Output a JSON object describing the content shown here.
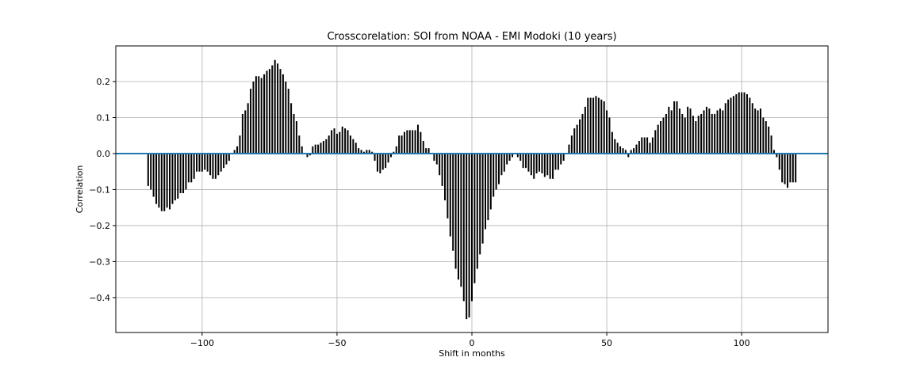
{
  "chart_data": {
    "type": "xcorr",
    "title": "Crosscorelation: SOI from NOAA - EMI Modoki (10 years)",
    "xlabel": "Shift in months",
    "ylabel": "Correlation",
    "x": [
      -120,
      -119,
      -118,
      -117,
      -116,
      -115,
      -114,
      -113,
      -112,
      -111,
      -110,
      -109,
      -108,
      -107,
      -106,
      -105,
      -104,
      -103,
      -102,
      -101,
      -100,
      -99,
      -98,
      -97,
      -96,
      -95,
      -94,
      -93,
      -92,
      -91,
      -90,
      -89,
      -88,
      -87,
      -86,
      -85,
      -84,
      -83,
      -82,
      -81,
      -80,
      -79,
      -78,
      -77,
      -76,
      -75,
      -74,
      -73,
      -72,
      -71,
      -70,
      -69,
      -68,
      -67,
      -66,
      -65,
      -64,
      -63,
      -62,
      -61,
      -60,
      -59,
      -58,
      -57,
      -56,
      -55,
      -54,
      -53,
      -52,
      -51,
      -50,
      -49,
      -48,
      -47,
      -46,
      -45,
      -44,
      -43,
      -42,
      -41,
      -40,
      -39,
      -38,
      -37,
      -36,
      -35,
      -34,
      -33,
      -32,
      -31,
      -30,
      -29,
      -28,
      -27,
      -26,
      -25,
      -24,
      -23,
      -22,
      -21,
      -20,
      -19,
      -18,
      -17,
      -16,
      -15,
      -14,
      -13,
      -12,
      -11,
      -10,
      -9,
      -8,
      -7,
      -6,
      -5,
      -4,
      -3,
      -2,
      -1,
      0,
      1,
      2,
      3,
      4,
      5,
      6,
      7,
      8,
      9,
      10,
      11,
      12,
      13,
      14,
      15,
      16,
      17,
      18,
      19,
      20,
      21,
      22,
      23,
      24,
      25,
      26,
      27,
      28,
      29,
      30,
      31,
      32,
      33,
      34,
      35,
      36,
      37,
      38,
      39,
      40,
      41,
      42,
      43,
      44,
      45,
      46,
      47,
      48,
      49,
      50,
      51,
      52,
      53,
      54,
      55,
      56,
      57,
      58,
      59,
      60,
      61,
      62,
      63,
      64,
      65,
      66,
      67,
      68,
      69,
      70,
      71,
      72,
      73,
      74,
      75,
      76,
      77,
      78,
      79,
      80,
      81,
      82,
      83,
      84,
      85,
      86,
      87,
      88,
      89,
      90,
      91,
      92,
      93,
      94,
      95,
      96,
      97,
      98,
      99,
      100,
      101,
      102,
      103,
      104,
      105,
      106,
      107,
      108,
      109,
      110,
      111,
      112,
      113,
      114,
      115,
      116,
      117,
      118,
      119,
      120
    ],
    "values": [
      -0.09,
      -0.1,
      -0.12,
      -0.14,
      -0.15,
      -0.16,
      -0.16,
      -0.15,
      -0.155,
      -0.14,
      -0.13,
      -0.125,
      -0.11,
      -0.11,
      -0.1,
      -0.08,
      -0.08,
      -0.07,
      -0.05,
      -0.05,
      -0.05,
      -0.045,
      -0.05,
      -0.06,
      -0.07,
      -0.07,
      -0.06,
      -0.05,
      -0.04,
      -0.03,
      -0.02,
      0.0,
      0.01,
      0.02,
      0.05,
      0.11,
      0.12,
      0.14,
      0.18,
      0.2,
      0.215,
      0.215,
      0.21,
      0.22,
      0.23,
      0.235,
      0.245,
      0.26,
      0.25,
      0.235,
      0.22,
      0.2,
      0.18,
      0.14,
      0.11,
      0.09,
      0.05,
      0.02,
      0.0,
      -0.01,
      -0.005,
      0.02,
      0.025,
      0.025,
      0.03,
      0.035,
      0.04,
      0.05,
      0.065,
      0.07,
      0.055,
      0.06,
      0.075,
      0.07,
      0.065,
      0.05,
      0.04,
      0.03,
      0.015,
      0.01,
      0.005,
      0.01,
      0.01,
      0.005,
      -0.02,
      -0.05,
      -0.055,
      -0.045,
      -0.04,
      -0.025,
      -0.01,
      0.005,
      0.02,
      0.05,
      0.05,
      0.06,
      0.065,
      0.065,
      0.065,
      0.065,
      0.08,
      0.06,
      0.035,
      0.015,
      0.015,
      0.0,
      -0.02,
      -0.03,
      -0.06,
      -0.09,
      -0.13,
      -0.18,
      -0.23,
      -0.27,
      -0.32,
      -0.35,
      -0.37,
      -0.41,
      -0.46,
      -0.455,
      -0.41,
      -0.36,
      -0.32,
      -0.28,
      -0.25,
      -0.21,
      -0.185,
      -0.155,
      -0.12,
      -0.1,
      -0.085,
      -0.06,
      -0.05,
      -0.03,
      -0.02,
      -0.01,
      0.0,
      -0.01,
      -0.02,
      -0.04,
      -0.04,
      -0.05,
      -0.06,
      -0.07,
      -0.055,
      -0.05,
      -0.055,
      -0.065,
      -0.06,
      -0.07,
      -0.07,
      -0.045,
      -0.045,
      -0.03,
      -0.02,
      0.0,
      0.025,
      0.05,
      0.07,
      0.08,
      0.095,
      0.11,
      0.13,
      0.155,
      0.155,
      0.155,
      0.16,
      0.155,
      0.15,
      0.145,
      0.12,
      0.1,
      0.06,
      0.04,
      0.03,
      0.02,
      0.015,
      0.01,
      -0.01,
      0.01,
      0.015,
      0.025,
      0.035,
      0.045,
      0.045,
      0.045,
      0.03,
      0.045,
      0.065,
      0.08,
      0.09,
      0.1,
      0.11,
      0.13,
      0.12,
      0.145,
      0.145,
      0.125,
      0.11,
      0.1,
      0.13,
      0.125,
      0.105,
      0.09,
      0.105,
      0.11,
      0.12,
      0.13,
      0.125,
      0.11,
      0.11,
      0.12,
      0.125,
      0.12,
      0.14,
      0.15,
      0.155,
      0.16,
      0.165,
      0.17,
      0.17,
      0.17,
      0.165,
      0.155,
      0.14,
      0.125,
      0.12,
      0.125,
      0.1,
      0.09,
      0.075,
      0.05,
      0.01,
      -0.01,
      -0.045,
      -0.08,
      -0.085,
      -0.095,
      -0.08,
      -0.08,
      -0.08
    ],
    "color": "#000000",
    "baseline_color": "#1f77b4",
    "xlim": [
      -132,
      132
    ],
    "xticks": [
      {
        "value": -100,
        "label": "−100"
      },
      {
        "value": -50,
        "label": "−50"
      },
      0,
      50,
      100
    ],
    "ylim": [
      -0.497,
      0.299
    ],
    "yticks": [
      {
        "value": -0.4,
        "label": "−0.4"
      },
      {
        "value": -0.3,
        "label": "−0.3"
      },
      {
        "value": -0.2,
        "label": "−0.2"
      },
      {
        "value": -0.1,
        "label": "−0.1"
      },
      {
        "value": 0,
        "label": "0.0"
      },
      {
        "value": 0.1,
        "label": "0.1"
      },
      {
        "value": 0.2,
        "label": "0.2"
      }
    ],
    "grid": true
  }
}
